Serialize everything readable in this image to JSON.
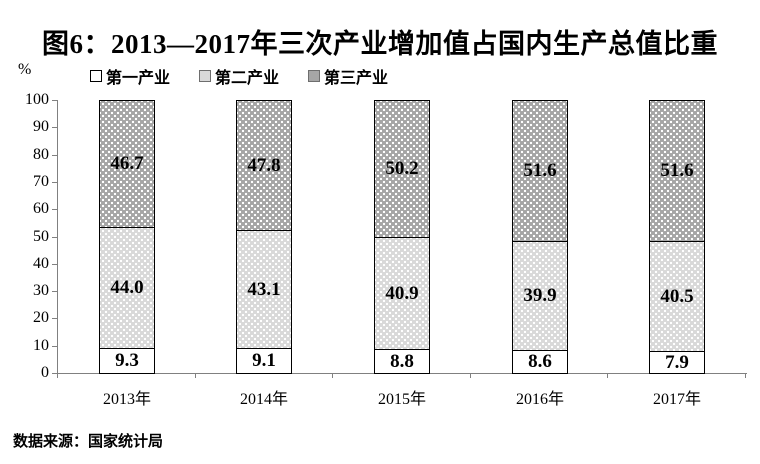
{
  "title": "图6：2013—2017年三次产业增加值占国内生产总值比重",
  "unit_label": "%",
  "source": "数据来源：国家统计局",
  "colors": {
    "text": "#000000",
    "axis": "#808080",
    "primary_fill": "#ffffff",
    "secondary_fill": "#d9d9d9",
    "tertiary_fill": "#a6a6a6",
    "pattern_dot": "#ffffff"
  },
  "chart_data": {
    "type": "bar",
    "stacked": true,
    "title": "图6：2013—2017年三次产业增加值占国内生产总值比重",
    "categories": [
      "2013年",
      "2014年",
      "2015年",
      "2016年",
      "2017年"
    ],
    "series": [
      {
        "name": "第一产业",
        "values": [
          9.3,
          9.1,
          8.8,
          8.6,
          7.9
        ],
        "labels": [
          "9.3",
          "9.1",
          "8.8",
          "8.6",
          "7.9"
        ],
        "pattern": "none"
      },
      {
        "name": "第二产业",
        "values": [
          44.0,
          43.1,
          40.9,
          39.9,
          40.5
        ],
        "labels": [
          "44.0",
          "43.1",
          "40.9",
          "39.9",
          "40.5"
        ],
        "pattern": "light-dots"
      },
      {
        "name": "第三产业",
        "values": [
          46.7,
          47.8,
          50.2,
          51.6,
          51.6
        ],
        "labels": [
          "46.7",
          "47.8",
          "50.2",
          "51.6",
          "51.6"
        ],
        "pattern": "dark-dots"
      }
    ],
    "ylabel": "%",
    "xlabel": "",
    "ylim": [
      0,
      100
    ],
    "yticks": [
      0,
      10,
      20,
      30,
      40,
      50,
      60,
      70,
      80,
      90,
      100
    ],
    "grid": false,
    "legend_position": "top-left",
    "value_labels": true,
    "source": "数据来源：国家统计局"
  }
}
